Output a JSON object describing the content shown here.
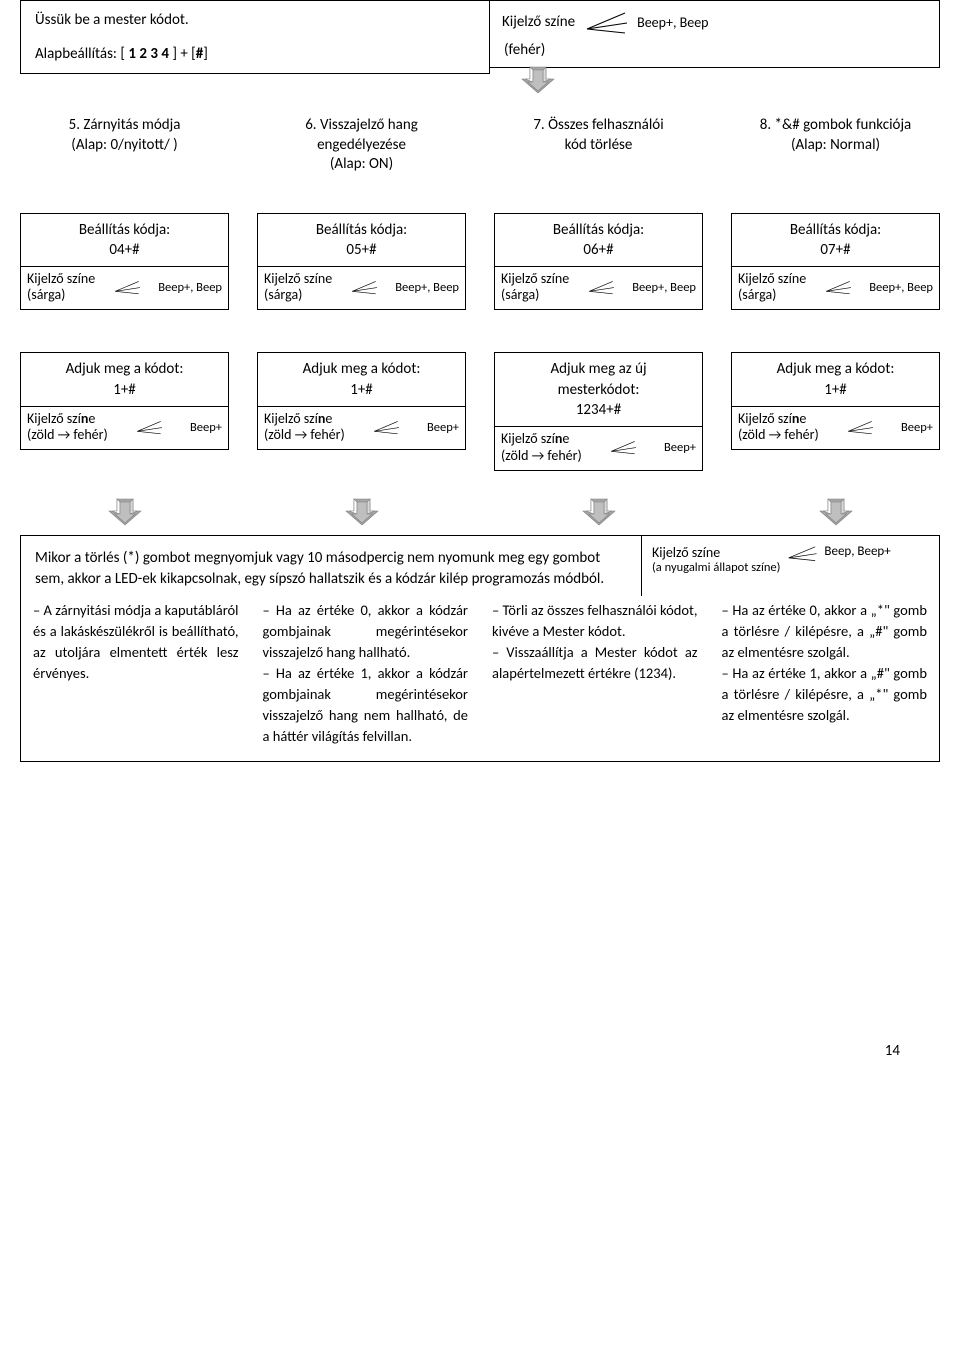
{
  "top": {
    "line1": "Üssük be a mester kódot.",
    "default_prefix": "Alapbeállítás: [ ",
    "default_code": "1 2 3 4",
    "default_suffix": " ] + [",
    "default_hash": "#",
    "default_end": "]"
  },
  "top_kijelzo": {
    "label": "Kijelző színe",
    "sub": "(fehér)",
    "beep": "Beep+, Beep"
  },
  "options": [
    {
      "title1": "5. Zárnyitás módja",
      "title2": "(Alap: 0/nyitott/ )"
    },
    {
      "title1": "6. Visszajelző hang",
      "title2": "engedélyezése",
      "title3": "(Alap: ON)"
    },
    {
      "title1": "7. Összes felhasználói",
      "title2": "kód törlése"
    },
    {
      "title1": "8. *&# gombok funkciója",
      "title2": "(Alap: Normal)"
    }
  ],
  "setting_label": "Beállítás kódja:",
  "setting_codes": [
    "04+#",
    "05+#",
    "06+#",
    "07+#"
  ],
  "kijelzo_yellow": {
    "label": "Kijelző színe",
    "sub": "(sárga)",
    "beep": "Beep+, Beep"
  },
  "give_codes": [
    {
      "line1": "Adjuk meg a kódot:",
      "line2": "1+#"
    },
    {
      "line1": "Adjuk meg a kódot:",
      "line2": "1+#"
    },
    {
      "line1": "Adjuk meg az új",
      "line2": "mesterkódot:",
      "line3": "1234+#"
    },
    {
      "line1": "Adjuk meg a kódot:",
      "line2": "1+#"
    }
  ],
  "kijelzo_green": {
    "label_html": "Kijelző szí",
    "label_bold": "n",
    "label_end": "e",
    "sub": "(zöld → fehér)",
    "beep": "Beep+"
  },
  "final": {
    "paragraph": "Mikor a törlés (*) gombot megnyomjuk vagy 10 másodpercig nem nyomunk meg egy gombot sem, akkor a LED-ek kikapcsolnak, egy sípszó hallatszik és a kódzár kilép programozás módból.",
    "right_label": "Kijelző színe",
    "right_sub": "(a nyugalmi állapot színe)",
    "right_beep": "Beep, Beep+"
  },
  "cols": [
    "– A zárnyitási módja a kaputábláról és a lakáskészülékről is beállítható, az utoljára elmentett érték lesz érvényes.",
    "– Ha az értéke 0, akkor a kódzár gombjainak megérintésekor visszajelző hang hallható.\n– Ha az értéke 1, akkor a kódzár gombjainak megérintésekor visszajelző hang nem hallható, de a háttér világítás felvillan.",
    "– Törli az összes felhasználói kódot, kivéve a Mester kódot.\n– Visszaállítja a Mester kódot az alapértelmezett értékre (1234).",
    "– Ha az értéke 0, akkor a „*\" gomb a törlésre / kilépésre, a „#\" gomb az elmentésre szolgál.\n– Ha az értéke 1, akkor a „#\" gomb a törlésre / kilépésre, a „*\" gomb az elmentésre szolgál."
  ],
  "pagenum": "14",
  "colors": {
    "border": "#000000",
    "arrow_light": "#ffffff",
    "arrow_mid": "#d9d9d9",
    "arrow_dark": "#a6a6a6"
  }
}
